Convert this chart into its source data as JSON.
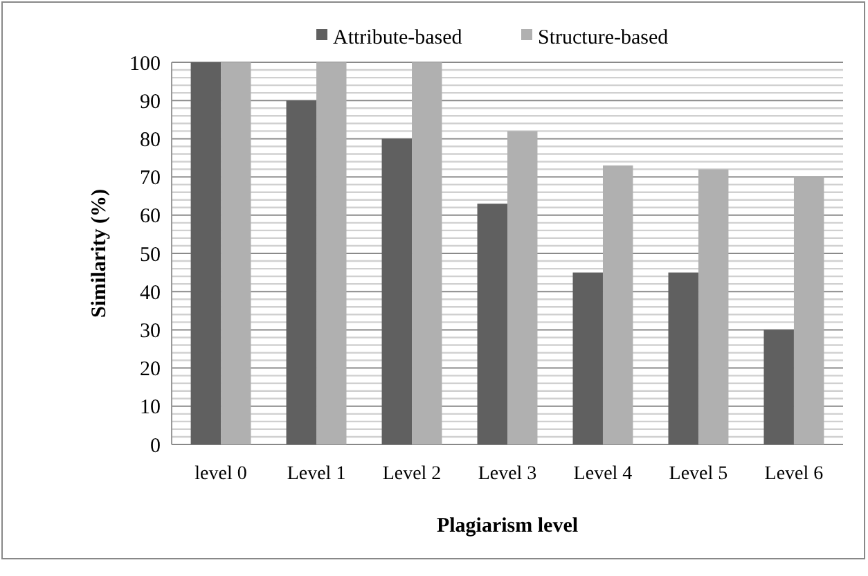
{
  "chart_data": {
    "type": "bar",
    "xlabel": "Plagiarism level",
    "ylabel": "Similarity (%)",
    "categories": [
      "level 0",
      "Level 1",
      "Level 2",
      "Level 3",
      "Level 4",
      "Level 5",
      "Level 6"
    ],
    "series": [
      {
        "name": "Attribute-based",
        "color": "#606060",
        "values": [
          100,
          90,
          80,
          63,
          45,
          45,
          30
        ]
      },
      {
        "name": "Structure-based",
        "color": "#b0b0b0",
        "values": [
          100,
          100,
          100,
          82,
          73,
          72,
          70
        ]
      }
    ],
    "ylim": [
      0,
      100
    ],
    "yticks": [
      0,
      {
        "value": 2,
        "label": null
      },
      {
        "value": 4,
        "label": null
      },
      {
        "value": 6,
        "label": null
      },
      {
        "value": 8,
        "label": null
      },
      10,
      {
        "value": 12,
        "label": null
      },
      {
        "value": 14,
        "label": null
      },
      {
        "value": 16,
        "label": null
      },
      {
        "value": 18,
        "label": null
      },
      20,
      {
        "value": 22,
        "label": null
      },
      {
        "value": 24,
        "label": null
      },
      {
        "value": 26,
        "label": null
      },
      {
        "value": 28,
        "label": null
      },
      30,
      {
        "value": 32,
        "label": null
      },
      {
        "value": 34,
        "label": null
      },
      {
        "value": 36,
        "label": null
      },
      {
        "value": 38,
        "label": null
      },
      40,
      {
        "value": 42,
        "label": null
      },
      {
        "value": 44,
        "label": null
      },
      {
        "value": 46,
        "label": null
      },
      {
        "value": 48,
        "label": null
      },
      50,
      {
        "value": 52,
        "label": null
      },
      {
        "value": 54,
        "label": null
      },
      {
        "value": 56,
        "label": null
      },
      {
        "value": 58,
        "label": null
      },
      60,
      {
        "value": 62,
        "label": null
      },
      {
        "value": 64,
        "label": null
      },
      {
        "value": 66,
        "label": null
      },
      {
        "value": 68,
        "label": null
      },
      70,
      {
        "value": 72,
        "label": null
      },
      {
        "value": 74,
        "label": null
      },
      {
        "value": 76,
        "label": null
      },
      {
        "value": 78,
        "label": null
      },
      80,
      {
        "value": 82,
        "label": null
      },
      {
        "value": 84,
        "label": null
      },
      {
        "value": 86,
        "label": null
      },
      {
        "value": 88,
        "label": null
      },
      90,
      {
        "value": 92,
        "label": null
      },
      {
        "value": 94,
        "label": null
      },
      {
        "value": 96,
        "label": null
      },
      {
        "value": 98,
        "label": null
      },
      100
    ],
    "grid": "y",
    "legend": "top"
  }
}
